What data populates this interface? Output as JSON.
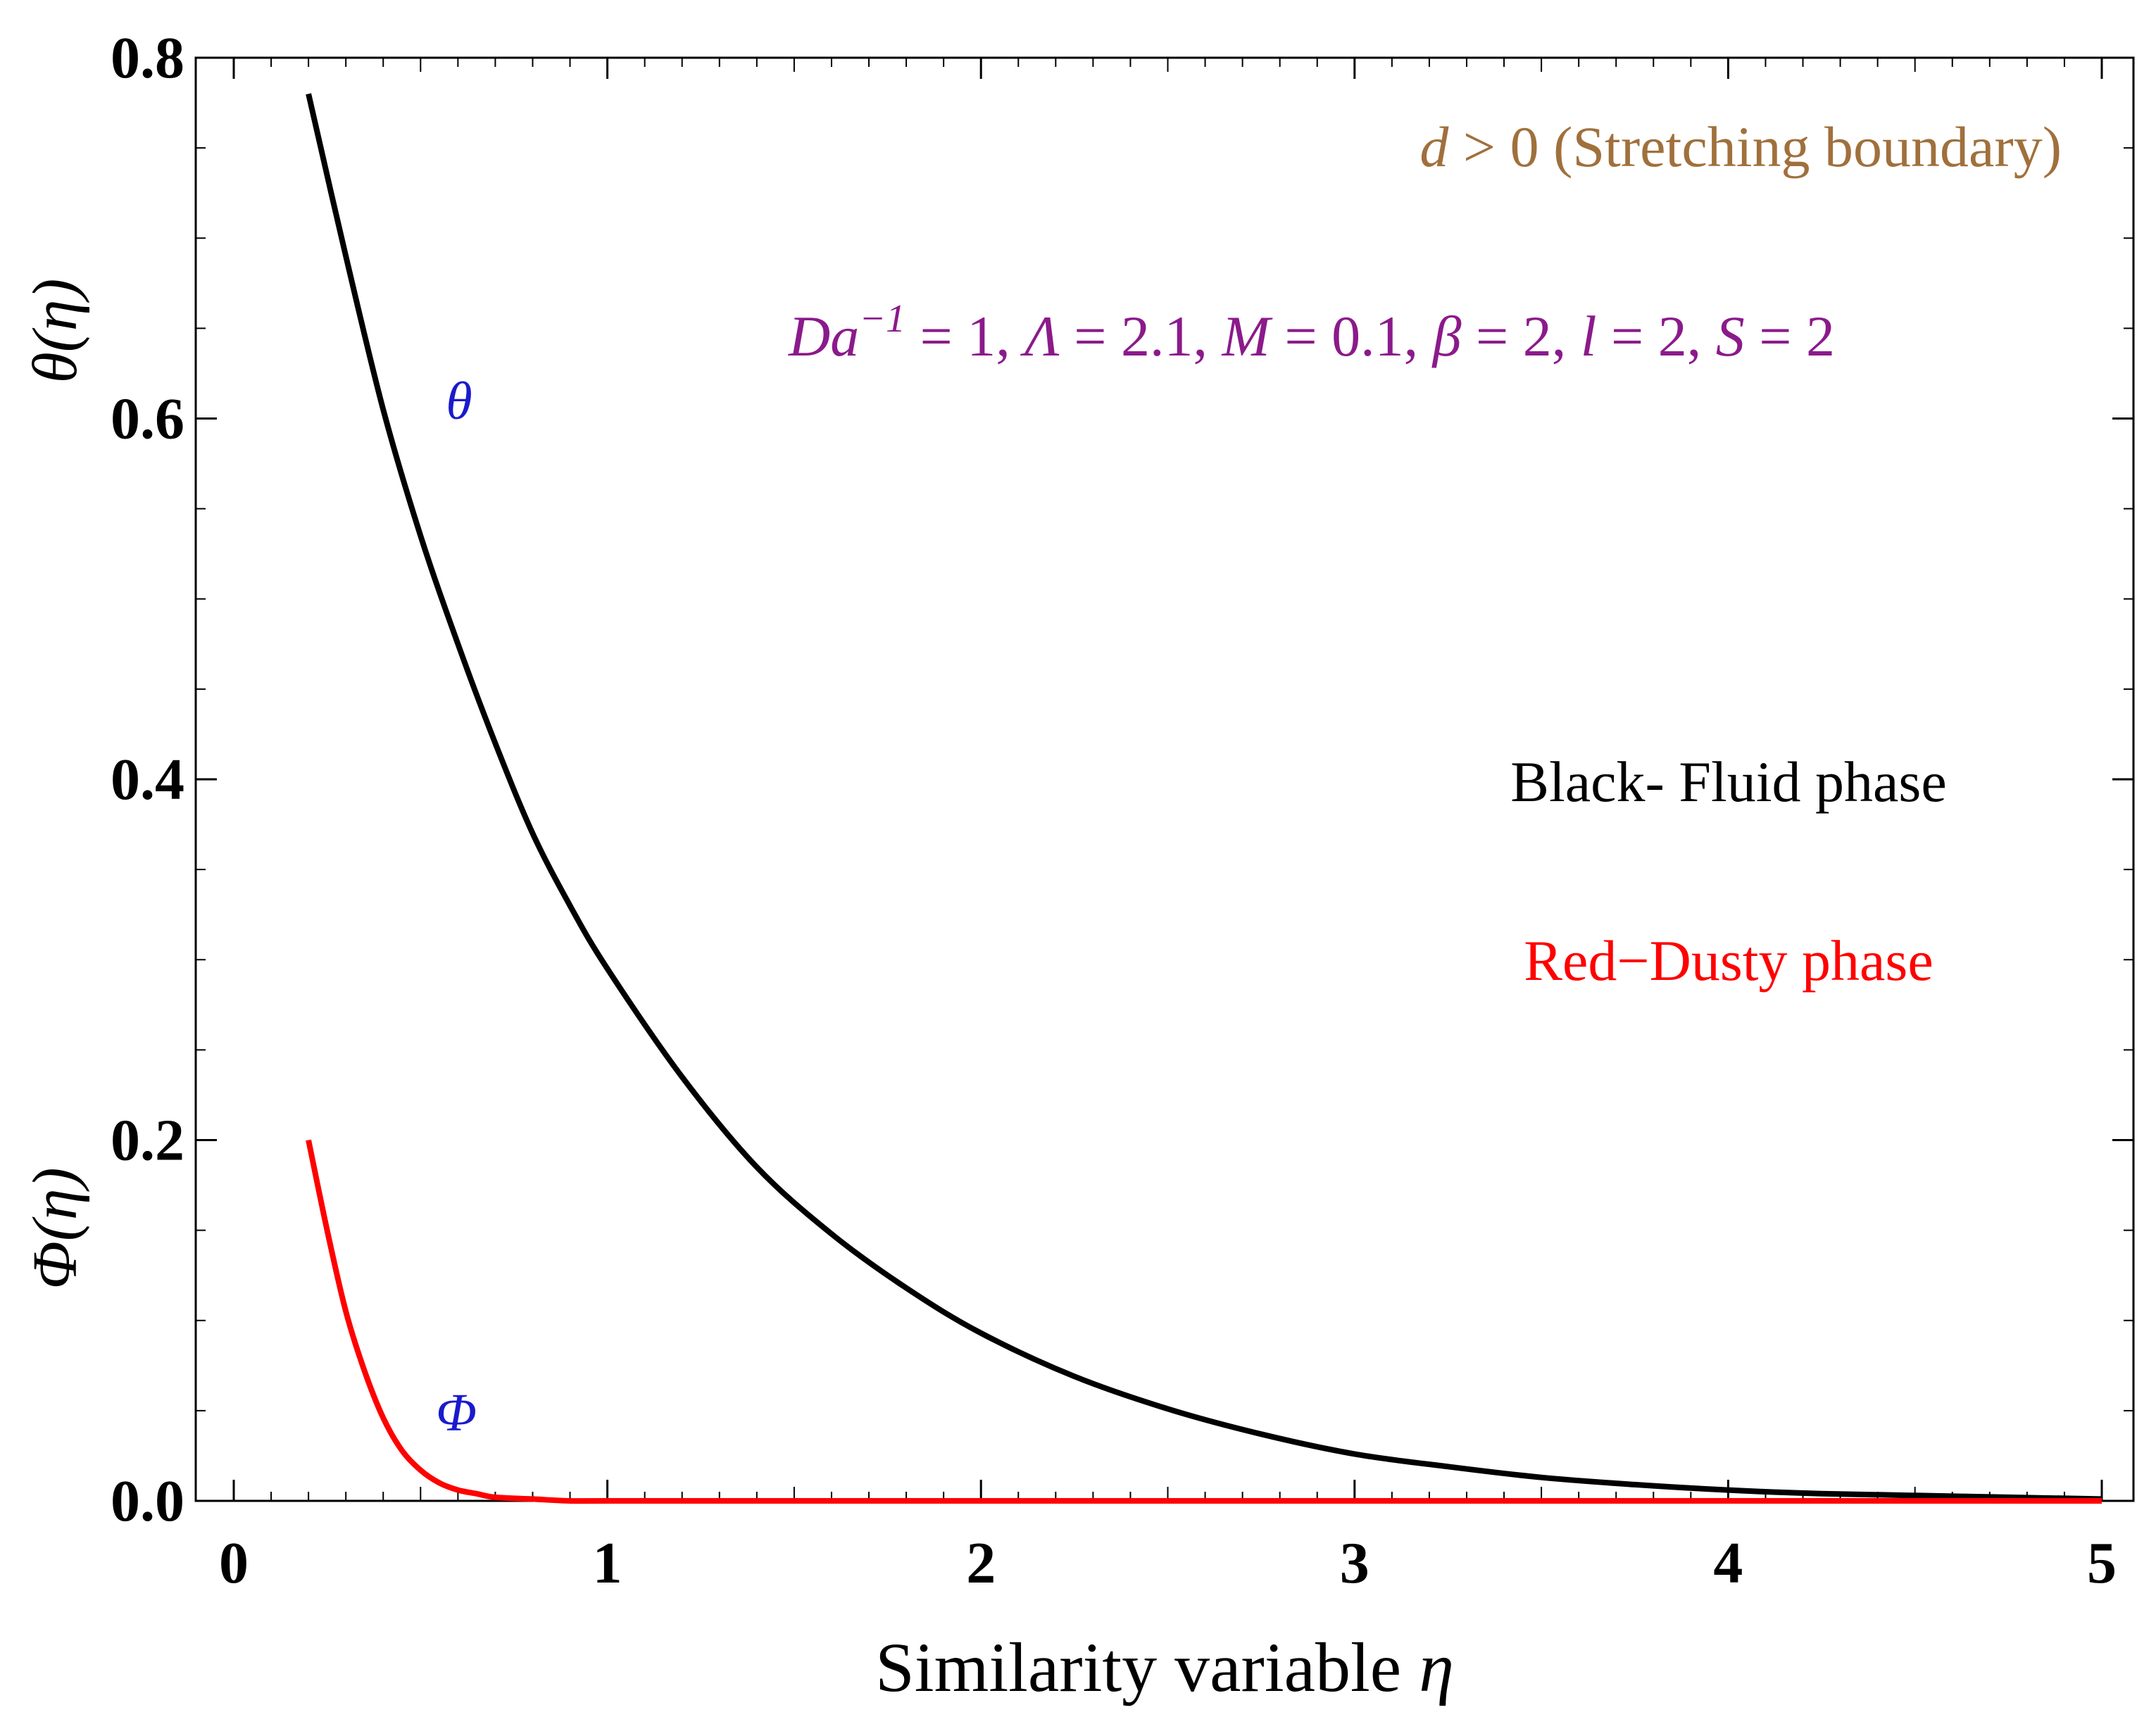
{
  "chart_data": {
    "type": "line",
    "xlabel_text": "Similarity variable ",
    "xlabel_symbol": "η",
    "ylabel_upper": "θ(η)",
    "ylabel_lower": "Φ(η)",
    "xlim": [
      0,
      5
    ],
    "ylim": [
      0,
      0.8
    ],
    "x_ticks": [
      "0",
      "1",
      "2",
      "3",
      "4",
      "5"
    ],
    "y_ticks": [
      "0.0",
      "0.2",
      "0.4",
      "0.6",
      "0.8"
    ],
    "series": [
      {
        "name": "θ",
        "color": "#000000",
        "x": [
          0.2,
          0.3,
          0.4,
          0.5,
          0.6,
          0.7,
          0.8,
          0.9,
          1.0,
          1.2,
          1.4,
          1.6,
          1.8,
          2.0,
          2.25,
          2.5,
          2.75,
          3.0,
          3.25,
          3.5,
          3.75,
          4.0,
          4.25,
          4.5,
          4.75,
          5.0
        ],
        "y": [
          0.78,
          0.69,
          0.605,
          0.535,
          0.475,
          0.42,
          0.37,
          0.33,
          0.295,
          0.235,
          0.185,
          0.148,
          0.118,
          0.093,
          0.069,
          0.051,
          0.037,
          0.026,
          0.019,
          0.013,
          0.009,
          0.006,
          0.004,
          0.003,
          0.002,
          0.001
        ]
      },
      {
        "name": "Φ",
        "color": "#ff0000",
        "x": [
          0.2,
          0.25,
          0.3,
          0.35,
          0.4,
          0.45,
          0.5,
          0.55,
          0.6,
          0.65,
          0.7,
          0.8,
          0.9,
          1.0,
          1.5,
          2.0,
          3.0,
          4.0,
          5.0
        ],
        "y": [
          0.2,
          0.15,
          0.105,
          0.072,
          0.046,
          0.028,
          0.017,
          0.01,
          0.006,
          0.004,
          0.002,
          0.001,
          0.0,
          0.0,
          0.0,
          0.0,
          0.0,
          0.0,
          0.0
        ]
      }
    ],
    "annotations": {
      "boundary_d": "d",
      "boundary_rest": " > 0 (Stretching boundary)",
      "params_1": "Da",
      "params_2": "−1",
      "params_3": " = 1, ",
      "params_4": "Λ",
      "params_5": " = 2.1, ",
      "params_6": "M",
      "params_7": " = 0.1, ",
      "params_8": "β",
      "params_9": " = 2, ",
      "params_10": "l",
      "params_11": " = 2,  ",
      "params_12": "S",
      "params_13": " = 2",
      "legend_black": "Black- Fluid phase",
      "legend_red": "Red−Dusty phase",
      "label_theta": "θ",
      "label_phi": "Φ"
    },
    "colors": {
      "boundary": "#a0703c",
      "params": "#8b1a8b",
      "curve_labels": "#1a1acc",
      "legend_black": "#000000",
      "legend_red": "#ff0000"
    }
  }
}
